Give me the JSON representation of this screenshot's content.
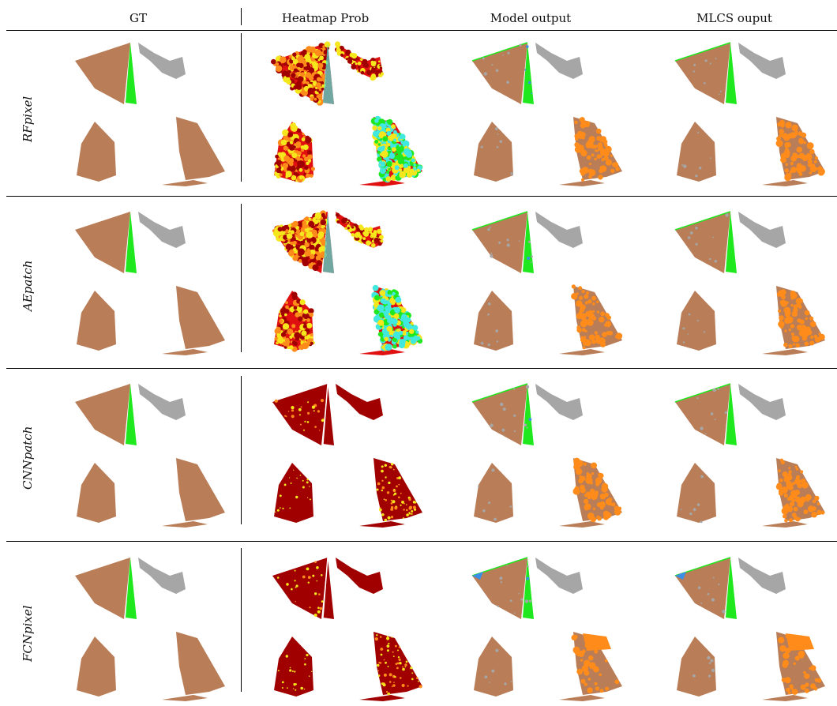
{
  "columns": [
    "GT",
    "Heatmap Prob",
    "Model output",
    "MLCS ouput"
  ],
  "rows": [
    "RFpixel",
    "AEpatch",
    "CNNpatch",
    "FCNpixel"
  ],
  "colors": {
    "field_brown": "#b97d57",
    "field_gray": "#a6a6a6",
    "field_green": "#1fe81f",
    "heat_darkred": "#a00000",
    "heat_red": "#e01010",
    "heat_yellow": "#f6e71c",
    "heat_cyan": "#40e8e0",
    "orange": "#ff8c1a",
    "blue": "#3b8fe6"
  }
}
